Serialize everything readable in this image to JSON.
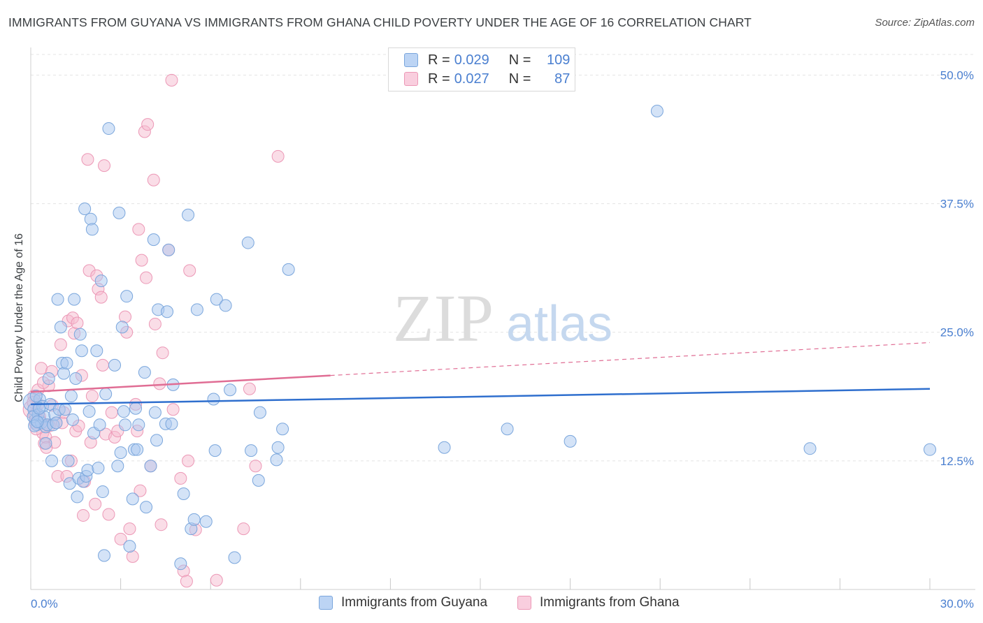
{
  "title": "IMMIGRANTS FROM GUYANA VS IMMIGRANTS FROM GHANA CHILD POVERTY UNDER THE AGE OF 16 CORRELATION CHART",
  "source": "Source: ZipAtlas.com",
  "colors": {
    "guyana_fill": "#aac8ef",
    "guyana_stroke": "#7aa6dc",
    "guyana_line": "#2f6fce",
    "ghana_fill": "#f6bcd0",
    "ghana_stroke": "#ec98b6",
    "ghana_line": "#e06d94",
    "tick_label": "#4a7fd0",
    "grid": "#e4e4e4"
  },
  "legend": {
    "guyana": {
      "r_label": "R =",
      "r_value": "0.029",
      "n_label": "N =",
      "n_value": "109"
    },
    "ghana": {
      "r_label": "R =",
      "r_value": "0.027",
      "n_label": "N =",
      "n_value": "87"
    }
  },
  "watermark": {
    "zip": "ZIP",
    "atlas": "atlas"
  },
  "chart_data": {
    "type": "scatter",
    "title": "IMMIGRANTS FROM GUYANA VS IMMIGRANTS FROM GHANA CHILD POVERTY UNDER THE AGE OF 16 CORRELATION CHART",
    "xlabel": "",
    "ylabel": "Child Poverty Under the Age of 16",
    "xlim": [
      0,
      30
    ],
    "ylim": [
      0,
      52
    ],
    "x_tick_labels": [
      "0.0%",
      "30.0%"
    ],
    "y_ticks": [
      12.5,
      25,
      37.5,
      50
    ],
    "y_tick_labels": [
      "12.5%",
      "25.0%",
      "37.5%",
      "50.0%"
    ],
    "grid": true,
    "series": [
      {
        "name": "Immigrants from Guyana",
        "trend": {
          "x": [
            0,
            30
          ],
          "y": [
            18.0,
            19.5
          ],
          "style": "solid"
        },
        "points": [
          [
            0.05,
            18.2
          ],
          [
            0.1,
            17.5
          ],
          [
            0.15,
            16.5
          ],
          [
            0.2,
            16.0
          ],
          [
            0.25,
            17.0
          ],
          [
            0.3,
            18.5
          ],
          [
            0.35,
            16.2
          ],
          [
            0.4,
            17.8
          ],
          [
            0.45,
            16.8
          ],
          [
            0.5,
            15.8
          ],
          [
            0.5,
            14.2
          ],
          [
            0.55,
            16.0
          ],
          [
            0.6,
            20.5
          ],
          [
            0.65,
            18.0
          ],
          [
            0.7,
            12.5
          ],
          [
            0.75,
            16.0
          ],
          [
            0.8,
            17.0
          ],
          [
            0.85,
            16.2
          ],
          [
            0.9,
            28.2
          ],
          [
            0.95,
            17.5
          ],
          [
            1.0,
            25.5
          ],
          [
            1.05,
            22.0
          ],
          [
            1.1,
            21.0
          ],
          [
            1.15,
            17.5
          ],
          [
            1.2,
            22.0
          ],
          [
            1.25,
            12.5
          ],
          [
            1.3,
            10.3
          ],
          [
            1.35,
            18.8
          ],
          [
            1.4,
            16.5
          ],
          [
            1.45,
            28.2
          ],
          [
            1.5,
            20.5
          ],
          [
            1.55,
            9.0
          ],
          [
            1.6,
            10.8
          ],
          [
            1.65,
            24.8
          ],
          [
            1.7,
            23.2
          ],
          [
            1.75,
            10.5
          ],
          [
            1.8,
            37.0
          ],
          [
            1.85,
            11.0
          ],
          [
            1.9,
            11.6
          ],
          [
            1.95,
            17.3
          ],
          [
            2.0,
            36.0
          ],
          [
            2.05,
            35.0
          ],
          [
            2.1,
            15.2
          ],
          [
            2.2,
            23.2
          ],
          [
            2.25,
            11.8
          ],
          [
            2.3,
            16.0
          ],
          [
            2.35,
            30.0
          ],
          [
            2.4,
            9.5
          ],
          [
            2.45,
            3.3
          ],
          [
            2.5,
            19.0
          ],
          [
            2.6,
            44.8
          ],
          [
            2.8,
            21.8
          ],
          [
            2.9,
            12.0
          ],
          [
            2.95,
            36.6
          ],
          [
            3.0,
            13.3
          ],
          [
            3.05,
            25.5
          ],
          [
            3.1,
            17.3
          ],
          [
            3.15,
            16.0
          ],
          [
            3.2,
            28.5
          ],
          [
            3.3,
            4.2
          ],
          [
            3.4,
            8.8
          ],
          [
            3.45,
            13.6
          ],
          [
            3.5,
            17.6
          ],
          [
            3.55,
            13.6
          ],
          [
            3.6,
            16.0
          ],
          [
            3.8,
            21.1
          ],
          [
            3.85,
            8.0
          ],
          [
            4.0,
            12.0
          ],
          [
            4.1,
            34.0
          ],
          [
            4.15,
            17.2
          ],
          [
            4.2,
            14.5
          ],
          [
            4.25,
            27.2
          ],
          [
            4.5,
            16.1
          ],
          [
            4.55,
            27.0
          ],
          [
            4.6,
            33.0
          ],
          [
            4.7,
            16.1
          ],
          [
            4.75,
            19.9
          ],
          [
            5.0,
            2.5
          ],
          [
            5.1,
            9.3
          ],
          [
            5.25,
            36.4
          ],
          [
            5.35,
            5.9
          ],
          [
            5.45,
            6.8
          ],
          [
            5.55,
            27.2
          ],
          [
            5.85,
            6.6
          ],
          [
            6.1,
            18.5
          ],
          [
            6.15,
            13.5
          ],
          [
            6.2,
            28.2
          ],
          [
            6.5,
            27.6
          ],
          [
            6.65,
            19.4
          ],
          [
            6.8,
            3.1
          ],
          [
            7.25,
            33.7
          ],
          [
            7.35,
            13.5
          ],
          [
            7.6,
            10.6
          ],
          [
            7.65,
            17.2
          ],
          [
            8.2,
            12.6
          ],
          [
            8.25,
            13.8
          ],
          [
            8.4,
            15.6
          ],
          [
            8.6,
            31.1
          ],
          [
            13.8,
            13.8
          ],
          [
            15.9,
            15.6
          ],
          [
            18.0,
            14.4
          ],
          [
            26.0,
            13.7
          ],
          [
            30.0,
            13.6
          ],
          [
            20.9,
            46.5
          ],
          [
            0.08,
            16.8
          ],
          [
            0.12,
            15.9
          ],
          [
            0.18,
            18.8
          ],
          [
            0.22,
            16.3
          ],
          [
            0.28,
            17.6
          ]
        ]
      },
      {
        "name": "Immigrants from Ghana",
        "trend": {
          "x": [
            0,
            30
          ],
          "y": [
            19.2,
            24.0
          ],
          "style": "solid-to-dashed",
          "solid_until_x": 10.0
        },
        "points": [
          [
            0.05,
            17.5
          ],
          [
            0.1,
            18.8
          ],
          [
            0.15,
            16.2
          ],
          [
            0.2,
            17.2
          ],
          [
            0.25,
            18.0
          ],
          [
            0.3,
            16.8
          ],
          [
            0.35,
            21.5
          ],
          [
            0.4,
            15.2
          ],
          [
            0.45,
            14.2
          ],
          [
            0.5,
            14.8
          ],
          [
            0.55,
            16.0
          ],
          [
            0.6,
            19.8
          ],
          [
            0.7,
            21.2
          ],
          [
            0.8,
            14.3
          ],
          [
            0.85,
            16.2
          ],
          [
            0.9,
            11.0
          ],
          [
            1.0,
            23.8
          ],
          [
            1.05,
            16.2
          ],
          [
            1.1,
            17.2
          ],
          [
            1.2,
            11.0
          ],
          [
            1.25,
            26.1
          ],
          [
            1.35,
            12.5
          ],
          [
            1.4,
            26.4
          ],
          [
            1.45,
            24.9
          ],
          [
            1.5,
            15.4
          ],
          [
            1.55,
            25.9
          ],
          [
            1.6,
            15.9
          ],
          [
            1.7,
            20.8
          ],
          [
            1.75,
            7.2
          ],
          [
            1.8,
            10.5
          ],
          [
            1.9,
            41.8
          ],
          [
            1.95,
            31.0
          ],
          [
            2.0,
            14.3
          ],
          [
            2.05,
            18.8
          ],
          [
            2.15,
            8.3
          ],
          [
            2.2,
            30.5
          ],
          [
            2.25,
            29.2
          ],
          [
            2.35,
            28.4
          ],
          [
            2.4,
            21.8
          ],
          [
            2.45,
            41.2
          ],
          [
            2.5,
            15.1
          ],
          [
            2.6,
            7.3
          ],
          [
            2.7,
            17.2
          ],
          [
            2.8,
            14.8
          ],
          [
            2.9,
            15.4
          ],
          [
            3.0,
            4.9
          ],
          [
            3.15,
            26.5
          ],
          [
            3.2,
            25.0
          ],
          [
            3.3,
            5.9
          ],
          [
            3.4,
            3.2
          ],
          [
            3.5,
            18.0
          ],
          [
            3.55,
            15.4
          ],
          [
            3.6,
            35.0
          ],
          [
            3.65,
            9.6
          ],
          [
            3.7,
            32.0
          ],
          [
            3.8,
            44.5
          ],
          [
            3.85,
            30.3
          ],
          [
            3.9,
            45.2
          ],
          [
            4.0,
            12.0
          ],
          [
            4.1,
            39.8
          ],
          [
            4.15,
            25.8
          ],
          [
            4.3,
            20.0
          ],
          [
            4.35,
            6.3
          ],
          [
            4.4,
            23.0
          ],
          [
            4.6,
            33.0
          ],
          [
            4.7,
            49.5
          ],
          [
            4.75,
            17.5
          ],
          [
            5.0,
            10.8
          ],
          [
            5.1,
            1.8
          ],
          [
            5.2,
            0.8
          ],
          [
            5.25,
            12.5
          ],
          [
            5.3,
            31.0
          ],
          [
            5.5,
            5.8
          ],
          [
            6.2,
            0.9
          ],
          [
            7.1,
            5.9
          ],
          [
            7.3,
            19.5
          ],
          [
            7.5,
            12.0
          ],
          [
            8.25,
            42.1
          ],
          [
            0.08,
            18.2
          ],
          [
            0.13,
            17.0
          ],
          [
            0.18,
            15.6
          ],
          [
            0.24,
            19.4
          ],
          [
            0.32,
            16.4
          ],
          [
            0.42,
            20.1
          ],
          [
            0.52,
            13.8
          ],
          [
            0.62,
            15.9
          ],
          [
            0.72,
            17.9
          ]
        ]
      }
    ]
  },
  "bottom_legend": {
    "guyana_label": "Immigrants from Guyana",
    "ghana_label": "Immigrants from Ghana"
  }
}
